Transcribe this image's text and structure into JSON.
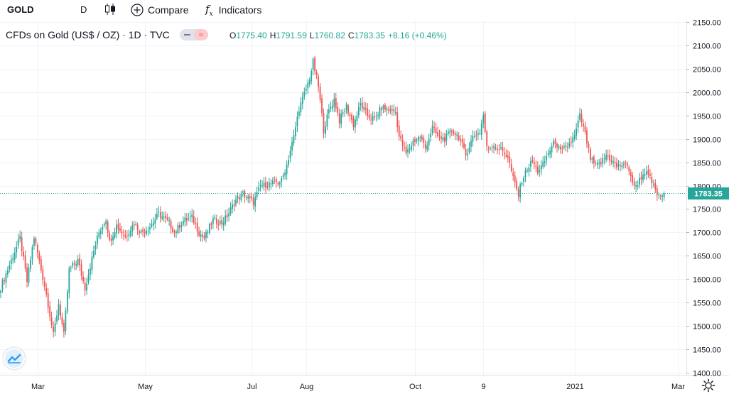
{
  "toolbar": {
    "symbol": "GOLD",
    "interval": "D",
    "compare_label": "Compare",
    "indicators_label": "Indicators",
    "icons": [
      "candles-icon",
      "plus-circle-icon",
      "fx-icon"
    ]
  },
  "legend": {
    "title": "CFDs on Gold (US$ / OZ) · 1D · TVC",
    "O": "1775.40",
    "H": "1791.59",
    "L": "1760.82",
    "C": "1783.35",
    "change": "+8.16 (+0.46%)"
  },
  "colors": {
    "up": "#26a69a",
    "down": "#ef5350",
    "grid": "#f0f3fa",
    "last_price": "#26a69a"
  },
  "chart_data": {
    "type": "candlestick",
    "title": "CFDs on Gold (US$ / OZ) · 1D · TVC",
    "ylim": [
      1395,
      2155
    ],
    "y_ticks": [
      "2150.00",
      "2100.00",
      "2050.00",
      "2000.00",
      "1950.00",
      "1900.00",
      "1850.00",
      "1800.00",
      "1750.00",
      "1700.00",
      "1650.00",
      "1600.00",
      "1550.00",
      "1500.00",
      "1450.00",
      "1400.00"
    ],
    "x_ticks": [
      {
        "label": "Mar",
        "day": 21
      },
      {
        "label": "May",
        "day": 82
      },
      {
        "label": "Jul",
        "day": 143
      },
      {
        "label": "Aug",
        "day": 174
      },
      {
        "label": "Oct",
        "day": 236
      },
      {
        "label": "9",
        "day": 275
      },
      {
        "label": "2021",
        "day": 327
      },
      {
        "label": "Mar",
        "day": 386
      }
    ],
    "last_price": "1783.35",
    "close_path": [
      [
        0,
        1582
      ],
      [
        6,
        1640
      ],
      [
        11,
        1688
      ],
      [
        15,
        1595
      ],
      [
        19,
        1690
      ],
      [
        26,
        1568
      ],
      [
        30,
        1480
      ],
      [
        33,
        1548
      ],
      [
        36,
        1480
      ],
      [
        39,
        1620
      ],
      [
        44,
        1640
      ],
      [
        48,
        1580
      ],
      [
        53,
        1660
      ],
      [
        56,
        1700
      ],
      [
        60,
        1730
      ],
      [
        62,
        1680
      ],
      [
        66,
        1715
      ],
      [
        71,
        1690
      ],
      [
        76,
        1720
      ],
      [
        80,
        1700
      ],
      [
        85,
        1712
      ],
      [
        90,
        1740
      ],
      [
        96,
        1720
      ],
      [
        99,
        1700
      ],
      [
        104,
        1725
      ],
      [
        109,
        1732
      ],
      [
        113,
        1700
      ],
      [
        116,
        1687
      ],
      [
        121,
        1727
      ],
      [
        126,
        1720
      ],
      [
        129,
        1735
      ],
      [
        134,
        1770
      ],
      [
        138,
        1782
      ],
      [
        144,
        1764
      ],
      [
        148,
        1800
      ],
      [
        151,
        1802
      ],
      [
        156,
        1806
      ],
      [
        160,
        1810
      ],
      [
        163,
        1845
      ],
      [
        167,
        1905
      ],
      [
        170,
        1965
      ],
      [
        172,
        1985
      ],
      [
        176,
        2030
      ],
      [
        178,
        2065
      ],
      [
        181,
        2012
      ],
      [
        184,
        1920
      ],
      [
        187,
        1960
      ],
      [
        190,
        1985
      ],
      [
        193,
        1940
      ],
      [
        197,
        1970
      ],
      [
        201,
        1930
      ],
      [
        205,
        1975
      ],
      [
        209,
        1950
      ],
      [
        213,
        1942
      ],
      [
        217,
        1967
      ],
      [
        221,
        1963
      ],
      [
        225,
        1958
      ],
      [
        227,
        1905
      ],
      [
        231,
        1868
      ],
      [
        235,
        1895
      ],
      [
        239,
        1905
      ],
      [
        242,
        1880
      ],
      [
        246,
        1925
      ],
      [
        249,
        1905
      ],
      [
        253,
        1900
      ],
      [
        257,
        1918
      ],
      [
        261,
        1905
      ],
      [
        265,
        1865
      ],
      [
        269,
        1905
      ],
      [
        273,
        1915
      ],
      [
        275,
        1952
      ],
      [
        277,
        1880
      ],
      [
        281,
        1885
      ],
      [
        285,
        1877
      ],
      [
        289,
        1862
      ],
      [
        292,
        1815
      ],
      [
        295,
        1780
      ],
      [
        297,
        1812
      ],
      [
        300,
        1837
      ],
      [
        303,
        1852
      ],
      [
        306,
        1830
      ],
      [
        309,
        1845
      ],
      [
        312,
        1870
      ],
      [
        316,
        1895
      ],
      [
        319,
        1872
      ],
      [
        323,
        1885
      ],
      [
        327,
        1905
      ],
      [
        330,
        1950
      ],
      [
        333,
        1910
      ],
      [
        336,
        1858
      ],
      [
        339,
        1842
      ],
      [
        342,
        1848
      ],
      [
        345,
        1865
      ],
      [
        348,
        1855
      ],
      [
        351,
        1840
      ],
      [
        355,
        1848
      ],
      [
        358,
        1835
      ],
      [
        361,
        1795
      ],
      [
        364,
        1812
      ],
      [
        367,
        1830
      ],
      [
        370,
        1815
      ],
      [
        373,
        1790
      ],
      [
        375,
        1775
      ],
      [
        378,
        1783
      ]
    ]
  }
}
